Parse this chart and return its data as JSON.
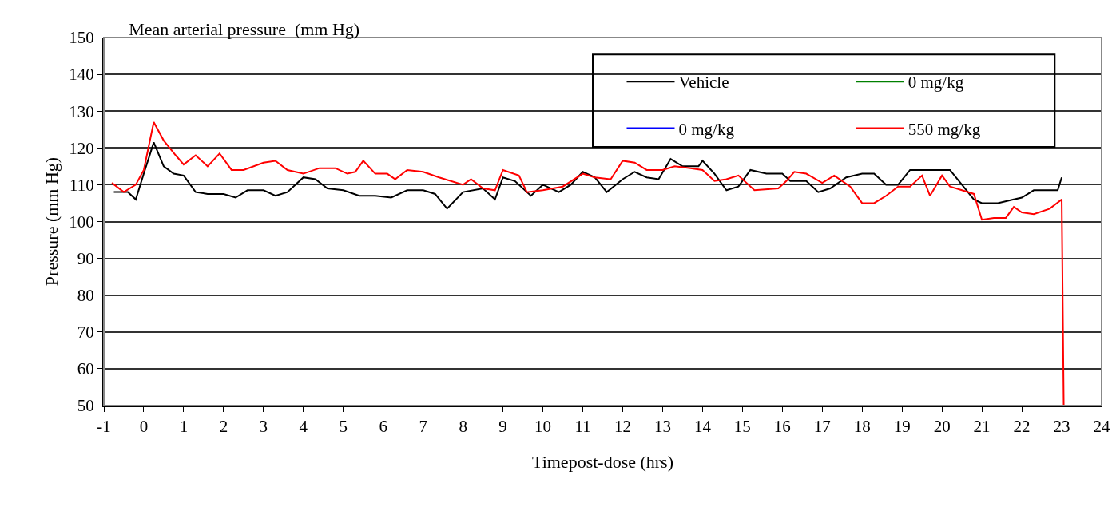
{
  "chart_data": {
    "type": "line",
    "title": "Mean arterial pressure  (mm Hg)",
    "xlabel": "Timepost-dose (hrs)",
    "ylabel": "Pressure (mm Hg)",
    "xlim": [
      -1,
      24
    ],
    "xticks": [
      -1,
      0,
      1,
      2,
      3,
      4,
      5,
      6,
      7,
      8,
      9,
      10,
      11,
      12,
      13,
      14,
      15,
      16,
      17,
      18,
      19,
      20,
      21,
      22,
      23,
      24
    ],
    "ylim": [
      50,
      150
    ],
    "yticks": [
      50,
      60,
      70,
      80,
      90,
      100,
      110,
      120,
      130,
      140,
      150
    ],
    "grid": "y",
    "legend": "top right",
    "marker": "none",
    "line_style": "solid",
    "series": [
      {
        "name": "Vehicle",
        "color": "#000000",
        "x": [
          -0.75,
          -0.4,
          -0.2,
          0,
          0.25,
          0.5,
          0.75,
          1,
          1.3,
          1.6,
          2,
          2.3,
          2.6,
          3,
          3.3,
          3.6,
          4,
          4.3,
          4.6,
          5,
          5.4,
          5.8,
          6.2,
          6.6,
          7,
          7.3,
          7.6,
          8,
          8.5,
          8.8,
          9,
          9.3,
          9.7,
          10,
          10.4,
          10.7,
          11,
          11.3,
          11.6,
          12,
          12.3,
          12.6,
          12.9,
          13.2,
          13.5,
          13.9,
          14,
          14.3,
          14.6,
          14.9,
          15.2,
          15.6,
          16,
          16.2,
          16.6,
          16.9,
          17.2,
          17.6,
          18,
          18.3,
          18.6,
          18.9,
          19.2,
          19.6,
          20,
          20.2,
          20.5,
          20.8,
          21,
          21.4,
          21.8,
          22,
          22.3,
          22.9,
          23
        ],
        "values": [
          108,
          108,
          106,
          113,
          121.5,
          115,
          113,
          112.5,
          108,
          107.5,
          107.5,
          106.5,
          108.5,
          108.5,
          107,
          108,
          112,
          111.5,
          109,
          108.5,
          107,
          107,
          106.5,
          108.5,
          108.5,
          107.5,
          103.5,
          108,
          109,
          106,
          112,
          111,
          107,
          110,
          108,
          110,
          113.5,
          112,
          108,
          111.5,
          113.5,
          112,
          111.5,
          117,
          115,
          115,
          116.5,
          113,
          108.5,
          109.5,
          114,
          113,
          113,
          111,
          111,
          108,
          109,
          112,
          113,
          113,
          110,
          110,
          114,
          114,
          114,
          114,
          110,
          106,
          105,
          105,
          106,
          106.5,
          108.5,
          108.5,
          112
        ]
      },
      {
        "name": "0 mg/kg",
        "color": "#008000"
      },
      {
        "name": "0 mg/kg",
        "color": "#0000ff"
      },
      {
        "name": "550 mg/kg",
        "color": "#ff0000",
        "x": [
          -0.8,
          -0.5,
          -0.2,
          0,
          0.25,
          0.5,
          0.8,
          1,
          1.3,
          1.6,
          1.9,
          2.2,
          2.5,
          3,
          3.3,
          3.6,
          4,
          4.4,
          4.8,
          5.1,
          5.3,
          5.5,
          5.8,
          6.1,
          6.3,
          6.6,
          7,
          7.4,
          8,
          8.2,
          8.5,
          8.8,
          9,
          9.4,
          9.6,
          10,
          10.5,
          11,
          11.3,
          11.7,
          12,
          12.3,
          12.6,
          13,
          13.3,
          13.7,
          14,
          14.3,
          14.6,
          14.9,
          15.3,
          15.9,
          16.1,
          16.3,
          16.6,
          17,
          17.3,
          17.7,
          18,
          18.3,
          18.6,
          18.9,
          19.2,
          19.5,
          19.7,
          20,
          20.2,
          20.5,
          20.8,
          21,
          21.3,
          21.6,
          21.8,
          22,
          22.3,
          22.7,
          23,
          23.05
        ],
        "values": [
          110.5,
          108,
          110,
          114,
          127,
          122,
          118,
          115.5,
          118,
          115,
          118.5,
          114,
          114,
          116,
          116.5,
          114,
          113,
          114.5,
          114.5,
          113,
          113.5,
          116.5,
          113,
          113,
          111.5,
          114,
          113.5,
          112,
          110,
          111.5,
          109,
          108.5,
          114,
          112.5,
          108,
          108.5,
          109.5,
          113,
          112,
          111.5,
          116.5,
          116,
          114,
          114,
          115,
          114.5,
          114,
          111,
          111.5,
          112.5,
          108.5,
          109,
          111,
          113.5,
          113,
          110.5,
          112.5,
          109.5,
          105,
          105,
          107,
          109.5,
          109.5,
          112.5,
          107,
          112.5,
          109.5,
          108.5,
          107.5,
          100.5,
          101,
          101,
          104,
          102.5,
          102,
          103.5,
          106,
          50
        ]
      }
    ]
  }
}
